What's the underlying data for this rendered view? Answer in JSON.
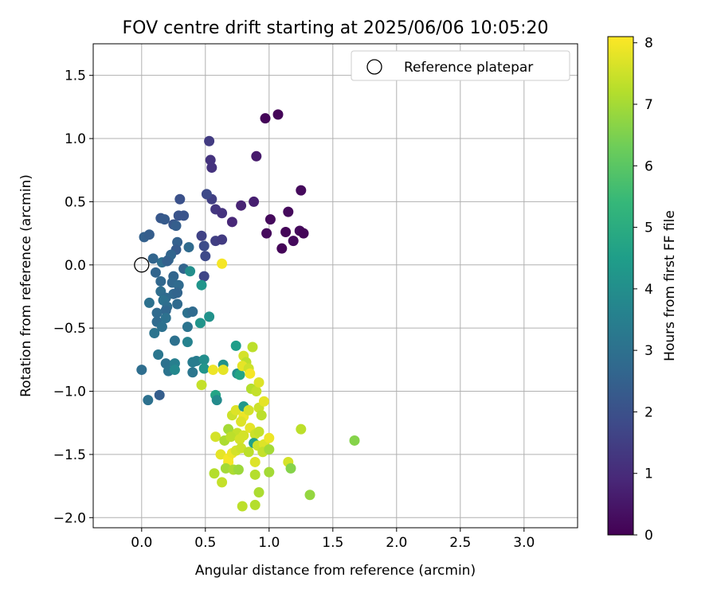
{
  "chart_data": {
    "type": "scatter",
    "title": "FOV centre drift starting at 2025/06/06 10:05:20",
    "xlabel": "Angular distance from reference (arcmin)",
    "ylabel": "Rotation from reference (arcmin)",
    "xlim": [
      -0.38,
      3.42
    ],
    "ylim": [
      -2.08,
      1.75
    ],
    "xticks": [
      0.0,
      0.5,
      1.0,
      1.5,
      2.0,
      2.5,
      3.0
    ],
    "xtick_labels": [
      "0.0",
      "0.5",
      "1.0",
      "1.5",
      "2.0",
      "2.5",
      "3.0"
    ],
    "yticks": [
      -2.0,
      -1.5,
      -1.0,
      -0.5,
      0.0,
      0.5,
      1.0,
      1.5
    ],
    "ytick_labels": [
      "−2.0",
      "−1.5",
      "−1.0",
      "−0.5",
      "0.0",
      "0.5",
      "1.0",
      "1.5"
    ],
    "grid": true,
    "legend": {
      "placement": "top-right",
      "entries": [
        {
          "label": "Reference platepar",
          "marker": "open-circle",
          "color": "#000000"
        }
      ]
    },
    "reference_point": {
      "x": 0.0,
      "y": 0.0
    },
    "colorbar": {
      "label": "Hours from first FF file",
      "range": [
        0,
        8.1
      ],
      "ticks": [
        0,
        1,
        2,
        3,
        4,
        5,
        6,
        7,
        8
      ],
      "tick_labels": [
        "0",
        "1",
        "2",
        "3",
        "4",
        "5",
        "6",
        "7",
        "8"
      ],
      "colormap": "viridis"
    },
    "points": [
      {
        "x": 0.97,
        "y": 1.16,
        "h": 0.1
      },
      {
        "x": 1.07,
        "y": 1.19,
        "h": 0.1
      },
      {
        "x": 1.01,
        "y": 0.36,
        "h": 0.2
      },
      {
        "x": 0.98,
        "y": 0.25,
        "h": 0.2
      },
      {
        "x": 1.1,
        "y": 0.13,
        "h": 0.1
      },
      {
        "x": 1.13,
        "y": 0.26,
        "h": 0.1
      },
      {
        "x": 1.15,
        "y": 0.42,
        "h": 0.2
      },
      {
        "x": 1.19,
        "y": 0.19,
        "h": 0.2
      },
      {
        "x": 1.24,
        "y": 0.27,
        "h": 0.2
      },
      {
        "x": 1.27,
        "y": 0.25,
        "h": 0.1
      },
      {
        "x": 1.25,
        "y": 0.59,
        "h": 0.2
      },
      {
        "x": 0.9,
        "y": 0.86,
        "h": 0.6
      },
      {
        "x": 0.88,
        "y": 0.5,
        "h": 0.7
      },
      {
        "x": 0.78,
        "y": 0.47,
        "h": 0.8
      },
      {
        "x": 0.71,
        "y": 0.34,
        "h": 0.9
      },
      {
        "x": 0.53,
        "y": 0.98,
        "h": 1.4
      },
      {
        "x": 0.54,
        "y": 0.83,
        "h": 1.2
      },
      {
        "x": 0.55,
        "y": 0.77,
        "h": 1.2
      },
      {
        "x": 0.58,
        "y": 0.44,
        "h": 1.3
      },
      {
        "x": 0.63,
        "y": 0.41,
        "h": 1.2
      },
      {
        "x": 0.55,
        "y": 0.52,
        "h": 1.5
      },
      {
        "x": 0.51,
        "y": 0.56,
        "h": 1.8
      },
      {
        "x": 0.58,
        "y": 0.19,
        "h": 1.5
      },
      {
        "x": 0.63,
        "y": 0.2,
        "h": 1.4
      },
      {
        "x": 0.47,
        "y": 0.23,
        "h": 1.6
      },
      {
        "x": 0.5,
        "y": 0.07,
        "h": 1.8
      },
      {
        "x": 0.49,
        "y": -0.09,
        "h": 1.7
      },
      {
        "x": 0.49,
        "y": 0.15,
        "h": 1.9
      },
      {
        "x": 0.3,
        "y": 0.52,
        "h": 2.0
      },
      {
        "x": 0.29,
        "y": 0.39,
        "h": 2.1
      },
      {
        "x": 0.33,
        "y": 0.39,
        "h": 2.1
      },
      {
        "x": 0.15,
        "y": 0.37,
        "h": 2.2
      },
      {
        "x": 0.18,
        "y": 0.36,
        "h": 2.3
      },
      {
        "x": 0.25,
        "y": 0.32,
        "h": 2.2
      },
      {
        "x": 0.27,
        "y": 0.31,
        "h": 2.4
      },
      {
        "x": 0.02,
        "y": 0.22,
        "h": 2.5
      },
      {
        "x": 0.06,
        "y": 0.24,
        "h": 2.4
      },
      {
        "x": 0.28,
        "y": 0.18,
        "h": 2.5
      },
      {
        "x": 0.37,
        "y": 0.14,
        "h": 2.8
      },
      {
        "x": 0.27,
        "y": 0.12,
        "h": 2.3
      },
      {
        "x": 0.23,
        "y": 0.08,
        "h": 2.6
      },
      {
        "x": 0.21,
        "y": 0.04,
        "h": 2.7
      },
      {
        "x": 0.09,
        "y": 0.05,
        "h": 2.6
      },
      {
        "x": 0.16,
        "y": 0.02,
        "h": 2.9
      },
      {
        "x": 0.2,
        "y": 0.03,
        "h": 2.5
      },
      {
        "x": 0.33,
        "y": -0.03,
        "h": 2.6
      },
      {
        "x": 0.38,
        "y": -0.05,
        "h": 4.0
      },
      {
        "x": 0.11,
        "y": -0.06,
        "h": 2.6
      },
      {
        "x": 0.15,
        "y": -0.13,
        "h": 2.7
      },
      {
        "x": 0.25,
        "y": -0.09,
        "h": 2.6
      },
      {
        "x": 0.24,
        "y": -0.14,
        "h": 2.7
      },
      {
        "x": 0.29,
        "y": -0.16,
        "h": 2.8
      },
      {
        "x": 0.15,
        "y": -0.21,
        "h": 2.9
      },
      {
        "x": 0.25,
        "y": -0.23,
        "h": 2.7
      },
      {
        "x": 0.19,
        "y": -0.26,
        "h": 2.8
      },
      {
        "x": 0.28,
        "y": -0.22,
        "h": 2.6
      },
      {
        "x": 0.17,
        "y": -0.28,
        "h": 3.0
      },
      {
        "x": 0.2,
        "y": -0.33,
        "h": 2.9
      },
      {
        "x": 0.06,
        "y": -0.3,
        "h": 3.0
      },
      {
        "x": 0.28,
        "y": -0.31,
        "h": 2.8
      },
      {
        "x": 0.19,
        "y": -0.36,
        "h": 2.7
      },
      {
        "x": 0.12,
        "y": -0.38,
        "h": 2.8
      },
      {
        "x": 0.36,
        "y": -0.38,
        "h": 3.0
      },
      {
        "x": 0.4,
        "y": -0.37,
        "h": 2.8
      },
      {
        "x": 0.12,
        "y": -0.45,
        "h": 2.8
      },
      {
        "x": 0.19,
        "y": -0.42,
        "h": 3.0
      },
      {
        "x": 0.16,
        "y": -0.49,
        "h": 3.0
      },
      {
        "x": 0.36,
        "y": -0.49,
        "h": 3.1
      },
      {
        "x": 0.1,
        "y": -0.54,
        "h": 3.1
      },
      {
        "x": 0.26,
        "y": -0.6,
        "h": 3.0
      },
      {
        "x": 0.36,
        "y": -0.61,
        "h": 3.6
      },
      {
        "x": 0.46,
        "y": -0.46,
        "h": 4.2
      },
      {
        "x": 0.53,
        "y": -0.41,
        "h": 4.1
      },
      {
        "x": 0.47,
        "y": -0.16,
        "h": 4.2
      },
      {
        "x": 0.13,
        "y": -0.71,
        "h": 3.2
      },
      {
        "x": 0.19,
        "y": -0.78,
        "h": 3.0
      },
      {
        "x": 0.21,
        "y": -0.84,
        "h": 3.1
      },
      {
        "x": 0.26,
        "y": -0.78,
        "h": 3.5
      },
      {
        "x": 0.26,
        "y": -0.83,
        "h": 3.8
      },
      {
        "x": 0.0,
        "y": -0.83,
        "h": 2.9
      },
      {
        "x": 0.14,
        "y": -1.03,
        "h": 2.4
      },
      {
        "x": 0.05,
        "y": -1.07,
        "h": 3.0
      },
      {
        "x": 0.4,
        "y": -0.77,
        "h": 3.4
      },
      {
        "x": 0.4,
        "y": -0.85,
        "h": 3.2
      },
      {
        "x": 0.43,
        "y": -0.76,
        "h": 3.4
      },
      {
        "x": 0.49,
        "y": -0.75,
        "h": 4.0
      },
      {
        "x": 0.49,
        "y": -0.82,
        "h": 4.2
      },
      {
        "x": 0.47,
        "y": -0.95,
        "h": 7.4
      },
      {
        "x": 0.56,
        "y": -0.83,
        "h": 7.9
      },
      {
        "x": 0.64,
        "y": -0.79,
        "h": 4.1
      },
      {
        "x": 0.64,
        "y": -0.83,
        "h": 7.8
      },
      {
        "x": 0.58,
        "y": -1.03,
        "h": 4.7
      },
      {
        "x": 0.59,
        "y": -1.07,
        "h": 3.9
      },
      {
        "x": 0.74,
        "y": -0.64,
        "h": 4.5
      },
      {
        "x": 0.75,
        "y": -0.86,
        "h": 4.0
      },
      {
        "x": 0.77,
        "y": -0.87,
        "h": 4.7
      },
      {
        "x": 0.8,
        "y": -0.72,
        "h": 7.6
      },
      {
        "x": 0.82,
        "y": -0.77,
        "h": 7.3
      },
      {
        "x": 0.87,
        "y": -0.65,
        "h": 7.3
      },
      {
        "x": 0.79,
        "y": -0.8,
        "h": 7.8
      },
      {
        "x": 0.84,
        "y": -0.82,
        "h": 7.5
      },
      {
        "x": 0.85,
        "y": -0.86,
        "h": 8.0
      },
      {
        "x": 0.86,
        "y": -0.98,
        "h": 7.2
      },
      {
        "x": 0.9,
        "y": -1.0,
        "h": 7.4
      },
      {
        "x": 0.92,
        "y": -0.93,
        "h": 7.7
      },
      {
        "x": 0.63,
        "y": 0.01,
        "h": 8.0
      },
      {
        "x": 0.71,
        "y": -1.19,
        "h": 7.5
      },
      {
        "x": 0.74,
        "y": -1.15,
        "h": 7.7
      },
      {
        "x": 0.8,
        "y": -1.12,
        "h": 4.3
      },
      {
        "x": 0.8,
        "y": -1.2,
        "h": 7.9
      },
      {
        "x": 0.84,
        "y": -1.15,
        "h": 7.6
      },
      {
        "x": 0.92,
        "y": -1.13,
        "h": 7.5
      },
      {
        "x": 0.96,
        "y": -1.08,
        "h": 7.8
      },
      {
        "x": 0.94,
        "y": -1.19,
        "h": 7.3
      },
      {
        "x": 0.78,
        "y": -1.24,
        "h": 7.7
      },
      {
        "x": 0.68,
        "y": -1.3,
        "h": 7.0
      },
      {
        "x": 0.75,
        "y": -1.33,
        "h": 7.4
      },
      {
        "x": 0.8,
        "y": -1.35,
        "h": 7.6
      },
      {
        "x": 0.85,
        "y": -1.29,
        "h": 7.8
      },
      {
        "x": 0.89,
        "y": -1.34,
        "h": 7.5
      },
      {
        "x": 0.92,
        "y": -1.32,
        "h": 7.4
      },
      {
        "x": 0.58,
        "y": -1.36,
        "h": 7.6
      },
      {
        "x": 0.65,
        "y": -1.39,
        "h": 7.1
      },
      {
        "x": 0.7,
        "y": -1.36,
        "h": 7.3
      },
      {
        "x": 0.77,
        "y": -1.38,
        "h": 7.6
      },
      {
        "x": 0.88,
        "y": -1.41,
        "h": 4.6
      },
      {
        "x": 0.91,
        "y": -1.43,
        "h": 7.5
      },
      {
        "x": 0.96,
        "y": -1.42,
        "h": 7.7
      },
      {
        "x": 1.0,
        "y": -1.37,
        "h": 7.9
      },
      {
        "x": 0.95,
        "y": -1.48,
        "h": 7.4
      },
      {
        "x": 1.0,
        "y": -1.46,
        "h": 7.0
      },
      {
        "x": 0.62,
        "y": -1.5,
        "h": 7.8
      },
      {
        "x": 0.68,
        "y": -1.53,
        "h": 8.0
      },
      {
        "x": 0.71,
        "y": -1.49,
        "h": 7.9
      },
      {
        "x": 0.74,
        "y": -1.47,
        "h": 7.6
      },
      {
        "x": 0.78,
        "y": -1.45,
        "h": 7.5
      },
      {
        "x": 0.84,
        "y": -1.48,
        "h": 7.3
      },
      {
        "x": 0.68,
        "y": -1.56,
        "h": 8.0
      },
      {
        "x": 0.89,
        "y": -1.56,
        "h": 7.7
      },
      {
        "x": 0.57,
        "y": -1.65,
        "h": 7.2
      },
      {
        "x": 0.66,
        "y": -1.61,
        "h": 7.0
      },
      {
        "x": 0.72,
        "y": -1.62,
        "h": 7.1
      },
      {
        "x": 0.76,
        "y": -1.62,
        "h": 6.9
      },
      {
        "x": 0.89,
        "y": -1.66,
        "h": 7.2
      },
      {
        "x": 1.0,
        "y": -1.64,
        "h": 7.0
      },
      {
        "x": 0.63,
        "y": -1.72,
        "h": 7.4
      },
      {
        "x": 0.92,
        "y": -1.8,
        "h": 7.1
      },
      {
        "x": 0.79,
        "y": -1.91,
        "h": 7.3
      },
      {
        "x": 0.89,
        "y": -1.9,
        "h": 7.2
      },
      {
        "x": 1.15,
        "y": -1.56,
        "h": 7.6
      },
      {
        "x": 1.17,
        "y": -1.61,
        "h": 6.6
      },
      {
        "x": 1.25,
        "y": -1.3,
        "h": 7.3
      },
      {
        "x": 1.32,
        "y": -1.82,
        "h": 6.8
      },
      {
        "x": 1.67,
        "y": -1.39,
        "h": 6.6
      }
    ]
  }
}
